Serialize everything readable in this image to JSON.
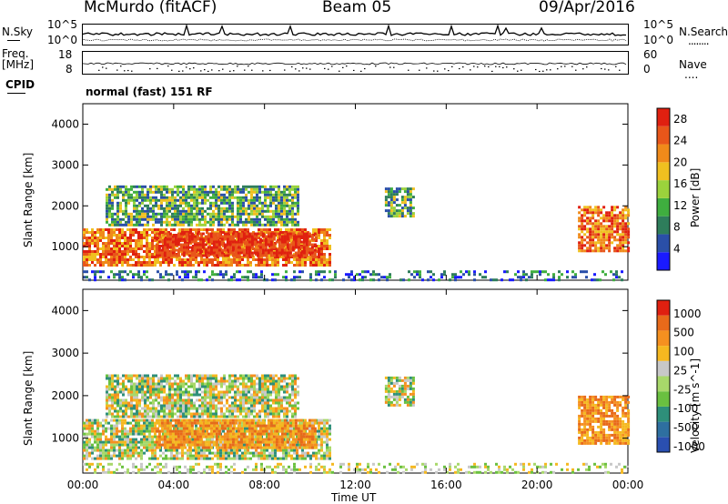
{
  "header": {
    "station": "McMurdo (fitACF)",
    "beam": "Beam 05",
    "date": "09/Apr/2016"
  },
  "panels": {
    "nsky": {
      "left_label": "N.Sky",
      "right_label": "N.Search",
      "right_legend": "........",
      "left_ticks": [
        "10^5",
        "10^0"
      ],
      "right_ticks": [
        "10^5",
        "10^0"
      ]
    },
    "freq": {
      "left_label_1": "Freq.",
      "left_label_2": "[MHz]",
      "left_ticks": [
        "18",
        "8"
      ],
      "right_label": "Nave",
      "right_legend": "....",
      "right_ticks": [
        "60",
        "0"
      ]
    },
    "cpid": {
      "left_label": "CPID",
      "text": "normal (fast) 151 RF"
    }
  },
  "chart_data": [
    {
      "type": "heatmap",
      "title": "",
      "ylabel": "Slant Range [km]",
      "xlabel": "Time UT",
      "xlim": [
        "00:00",
        "24:00"
      ],
      "ylim": [
        180,
        4500
      ],
      "y_ticks": [
        1000,
        2000,
        3000,
        4000
      ],
      "x_ticks": [
        "00:00",
        "04:00",
        "08:00",
        "12:00",
        "16:00",
        "20:00",
        "00:00"
      ],
      "colorbar": {
        "label": "Power [dB]",
        "ticks": [
          4,
          8,
          12,
          16,
          20,
          24,
          28
        ],
        "range": [
          0,
          30
        ],
        "colors": [
          "#1a1aff",
          "#2a4fa8",
          "#2e7d5b",
          "#3fae3f",
          "#9bd23c",
          "#f0c020",
          "#f08a1a",
          "#e8561a",
          "#e02010"
        ]
      },
      "regions": [
        {
          "t0": 0.0,
          "t1": 10.9,
          "r0": 550,
          "r1": 1450,
          "level": "high"
        },
        {
          "t0": 3.2,
          "t1": 10.2,
          "r0": 750,
          "r1": 1350,
          "level": "peak"
        },
        {
          "t0": 1.0,
          "t1": 9.5,
          "r0": 1500,
          "r1": 2500,
          "level": "mid"
        },
        {
          "t0": 13.3,
          "t1": 14.6,
          "r0": 1750,
          "r1": 2450,
          "level": "mid"
        },
        {
          "t0": 21.8,
          "t1": 24.0,
          "r0": 900,
          "r1": 2000,
          "level": "high"
        },
        {
          "t0": 0.0,
          "t1": 24.0,
          "r0": 190,
          "r1": 420,
          "level": "low"
        }
      ]
    },
    {
      "type": "heatmap",
      "title": "",
      "ylabel": "Slant Range [km]",
      "xlabel": "Time UT",
      "xlim": [
        "00:00",
        "24:00"
      ],
      "ylim": [
        180,
        4500
      ],
      "y_ticks": [
        1000,
        2000,
        3000,
        4000
      ],
      "x_ticks": [
        "00:00",
        "04:00",
        "08:00",
        "12:00",
        "16:00",
        "20:00",
        "00:00"
      ],
      "colorbar": {
        "label": "Velocity [m s^-1]",
        "ticks": [
          1000,
          500,
          100,
          25,
          -25,
          -100,
          -500,
          -1000
        ],
        "range": [
          -1000,
          1000
        ],
        "colors": [
          "#2a4fb0",
          "#2e6fa0",
          "#2e8f7a",
          "#6ac040",
          "#a8d86a",
          "#c8c8c8",
          "#f5b820",
          "#f59020",
          "#e86a1a",
          "#e02010"
        ]
      },
      "regions": [
        {
          "t0": 0.0,
          "t1": 10.9,
          "r0": 550,
          "r1": 1450,
          "level": "mixed"
        },
        {
          "t0": 3.2,
          "t1": 10.2,
          "r0": 750,
          "r1": 1450,
          "level": "neg"
        },
        {
          "t0": 1.0,
          "t1": 9.5,
          "r0": 1500,
          "r1": 2500,
          "level": "mixed"
        },
        {
          "t0": 13.3,
          "t1": 14.6,
          "r0": 1750,
          "r1": 2450,
          "level": "mixed"
        },
        {
          "t0": 21.8,
          "t1": 24.0,
          "r0": 900,
          "r1": 2000,
          "level": "neg"
        },
        {
          "t0": 0.0,
          "t1": 24.0,
          "r0": 190,
          "r1": 420,
          "level": "low"
        }
      ]
    }
  ],
  "xaxis_label": "Time UT"
}
